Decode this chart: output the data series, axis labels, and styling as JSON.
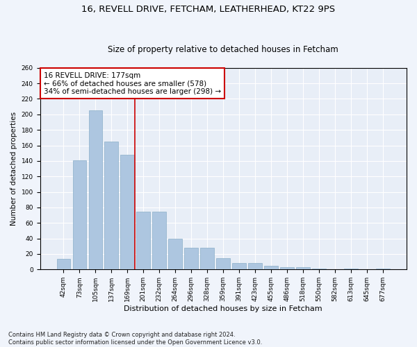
{
  "title1": "16, REVELL DRIVE, FETCHAM, LEATHERHEAD, KT22 9PS",
  "title2": "Size of property relative to detached houses in Fetcham",
  "xlabel": "Distribution of detached houses by size in Fetcham",
  "ylabel": "Number of detached properties",
  "categories": [
    "42sqm",
    "73sqm",
    "105sqm",
    "137sqm",
    "169sqm",
    "201sqm",
    "232sqm",
    "264sqm",
    "296sqm",
    "328sqm",
    "359sqm",
    "391sqm",
    "423sqm",
    "455sqm",
    "486sqm",
    "518sqm",
    "550sqm",
    "582sqm",
    "613sqm",
    "645sqm",
    "677sqm"
  ],
  "values": [
    14,
    141,
    205,
    165,
    148,
    75,
    75,
    40,
    28,
    28,
    15,
    8,
    8,
    5,
    3,
    3,
    1,
    0,
    1,
    0,
    1
  ],
  "bar_color": "#adc6e0",
  "bar_edge_color": "#8aaec8",
  "reference_line_color": "#cc0000",
  "annotation_text": "16 REVELL DRIVE: 177sqm\n← 66% of detached houses are smaller (578)\n34% of semi-detached houses are larger (298) →",
  "annotation_box_facecolor": "#ffffff",
  "annotation_box_edgecolor": "#cc0000",
  "ylim": [
    0,
    260
  ],
  "yticks": [
    0,
    20,
    40,
    60,
    80,
    100,
    120,
    140,
    160,
    180,
    200,
    220,
    240,
    260
  ],
  "plot_facecolor": "#e8eef7",
  "fig_facecolor": "#f0f4fb",
  "grid_color": "#ffffff",
  "footnote": "Contains HM Land Registry data © Crown copyright and database right 2024.\nContains public sector information licensed under the Open Government Licence v3.0.",
  "title1_fontsize": 9.5,
  "title2_fontsize": 8.5,
  "xlabel_fontsize": 8,
  "ylabel_fontsize": 7.5,
  "annotation_fontsize": 7.5,
  "tick_fontsize": 6.5,
  "footnote_fontsize": 6.0
}
